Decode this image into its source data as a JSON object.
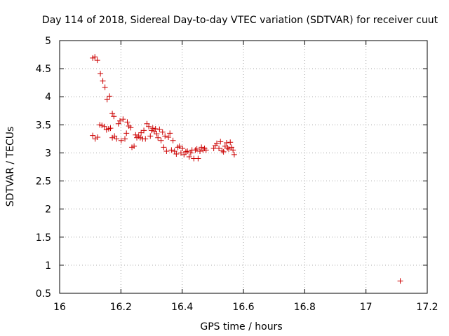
{
  "chart_data": {
    "type": "scatter",
    "title": "Day 114 of 2018, Sidereal Day-to-day VTEC variation (SDTVAR) for receiver cuut",
    "xlabel": "GPS time / hours",
    "ylabel": "SDTVAR / TECUs",
    "xlim": [
      16,
      17.2
    ],
    "ylim": [
      0.5,
      5
    ],
    "grid": true,
    "marker": "+",
    "color": "#cc0000",
    "x_ticks": [
      16,
      16.2,
      16.4,
      16.6,
      16.8,
      17,
      17.2
    ],
    "x_tick_labels": [
      "16",
      "16.2",
      "16.4",
      "16.6",
      "16.8",
      "17",
      "17.2"
    ],
    "y_ticks": [
      0.5,
      1,
      1.5,
      2,
      2.5,
      3,
      3.5,
      4,
      4.5,
      5
    ],
    "y_tick_labels": [
      "0.5",
      "1",
      "1.5",
      "2",
      "2.5",
      "3",
      "3.5",
      "4",
      "4.5",
      "5"
    ],
    "series": [
      {
        "name": "SDTVAR",
        "points": [
          [
            16.108,
            4.69
          ],
          [
            16.115,
            4.71
          ],
          [
            16.123,
            4.65
          ],
          [
            16.133,
            4.41
          ],
          [
            16.141,
            4.28
          ],
          [
            16.148,
            4.17
          ],
          [
            16.155,
            3.95
          ],
          [
            16.163,
            4.01
          ],
          [
            16.108,
            3.31
          ],
          [
            16.116,
            3.25
          ],
          [
            16.124,
            3.28
          ],
          [
            16.131,
            3.5
          ],
          [
            16.138,
            3.49
          ],
          [
            16.146,
            3.47
          ],
          [
            16.153,
            3.41
          ],
          [
            16.16,
            3.43
          ],
          [
            16.166,
            3.44
          ],
          [
            16.172,
            3.7
          ],
          [
            16.177,
            3.65
          ],
          [
            16.172,
            3.27
          ],
          [
            16.179,
            3.3
          ],
          [
            16.186,
            3.25
          ],
          [
            16.192,
            3.52
          ],
          [
            16.197,
            3.57
          ],
          [
            16.201,
            3.22
          ],
          [
            16.207,
            3.6
          ],
          [
            16.213,
            3.25
          ],
          [
            16.218,
            3.35
          ],
          [
            16.221,
            3.55
          ],
          [
            16.226,
            3.48
          ],
          [
            16.232,
            3.45
          ],
          [
            16.236,
            3.1
          ],
          [
            16.243,
            3.12
          ],
          [
            16.248,
            3.32
          ],
          [
            16.252,
            3.27
          ],
          [
            16.258,
            3.3
          ],
          [
            16.263,
            3.27
          ],
          [
            16.266,
            3.36
          ],
          [
            16.271,
            3.25
          ],
          [
            16.275,
            3.4
          ],
          [
            16.28,
            3.25
          ],
          [
            16.285,
            3.52
          ],
          [
            16.291,
            3.47
          ],
          [
            16.296,
            3.3
          ],
          [
            16.3,
            3.4
          ],
          [
            16.304,
            3.44
          ],
          [
            16.309,
            3.38
          ],
          [
            16.313,
            3.43
          ],
          [
            16.317,
            3.34
          ],
          [
            16.321,
            3.27
          ],
          [
            16.326,
            3.42
          ],
          [
            16.331,
            3.22
          ],
          [
            16.336,
            3.37
          ],
          [
            16.34,
            3.1
          ],
          [
            16.344,
            3.3
          ],
          [
            16.349,
            3.03
          ],
          [
            16.355,
            3.28
          ],
          [
            16.36,
            3.35
          ],
          [
            16.365,
            3.05
          ],
          [
            16.37,
            3.22
          ],
          [
            16.375,
            3.03
          ],
          [
            16.381,
            2.98
          ],
          [
            16.386,
            3.1
          ],
          [
            16.391,
            3.12
          ],
          [
            16.396,
            3.0
          ],
          [
            16.401,
            3.08
          ],
          [
            16.406,
            2.97
          ],
          [
            16.412,
            3.02
          ],
          [
            16.417,
            3.03
          ],
          [
            16.423,
            2.93
          ],
          [
            16.428,
            3.0
          ],
          [
            16.432,
            3.05
          ],
          [
            16.438,
            2.9
          ],
          [
            16.443,
            3.05
          ],
          [
            16.448,
            3.07
          ],
          [
            16.452,
            2.9
          ],
          [
            16.458,
            3.03
          ],
          [
            16.463,
            3.1
          ],
          [
            16.468,
            3.05
          ],
          [
            16.473,
            3.08
          ],
          [
            16.478,
            3.05
          ],
          [
            16.503,
            3.08
          ],
          [
            16.508,
            3.13
          ],
          [
            16.513,
            3.17
          ],
          [
            16.52,
            3.08
          ],
          [
            16.525,
            3.2
          ],
          [
            16.53,
            3.04
          ],
          [
            16.535,
            3.02
          ],
          [
            16.54,
            3.12
          ],
          [
            16.545,
            3.18
          ],
          [
            16.548,
            3.09
          ],
          [
            16.552,
            3.07
          ],
          [
            16.557,
            3.19
          ],
          [
            16.561,
            3.1
          ],
          [
            16.566,
            3.05
          ],
          [
            16.57,
            2.97
          ],
          [
            17.112,
            0.72
          ]
        ]
      }
    ]
  }
}
